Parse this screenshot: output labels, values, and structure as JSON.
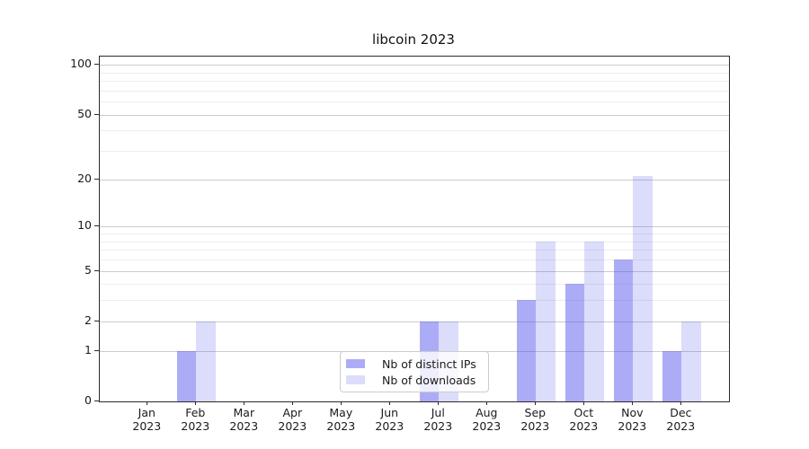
{
  "title": "libcoin 2023",
  "chart_data": {
    "type": "bar",
    "title": "libcoin 2023",
    "categories": [
      "Jan 2023",
      "Feb 2023",
      "Mar 2023",
      "Apr 2023",
      "May 2023",
      "Jun 2023",
      "Jul 2023",
      "Aug 2023",
      "Sep 2023",
      "Oct 2023",
      "Nov 2023",
      "Dec 2023"
    ],
    "series": [
      {
        "name": "Nb of distinct IPs",
        "values": [
          0,
          1,
          0,
          0,
          0,
          0,
          2,
          0,
          3,
          4,
          6,
          1
        ],
        "color": "rgba(70,70,235,0.45)",
        "color_on_white": "#acacf6"
      },
      {
        "name": "Nb of downloads",
        "values": [
          0,
          2,
          0,
          0,
          0,
          0,
          2,
          0,
          8,
          8,
          21,
          2
        ],
        "color": "rgba(70,70,235,0.19)",
        "color_on_white": "#dfdffb"
      }
    ],
    "xlabel": "",
    "ylabel": "",
    "yscale": "log1p",
    "ylim": [
      0,
      112
    ],
    "yticks": [
      0,
      1,
      2,
      5,
      10,
      20,
      50,
      100
    ],
    "yticks_minor": [
      3,
      4,
      6,
      7,
      8,
      9,
      30,
      40,
      60,
      70,
      80,
      90
    ],
    "grid": "both",
    "legend_position": "lower center"
  },
  "colors": {
    "grid_major": "#cccccc",
    "grid_minor": "#ededed",
    "spine": "#2a2a2a",
    "text": "#1a1a1a",
    "legend_border": "#cccccc",
    "legend_background": "rgba(255,255,255,0.8)"
  }
}
